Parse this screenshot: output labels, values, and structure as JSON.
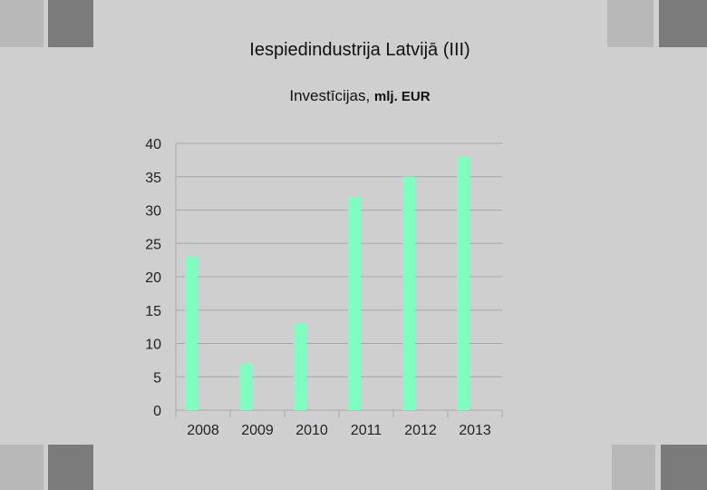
{
  "slide": {
    "title": "Iespiedindustrija Latvijā (III)",
    "subtitle_main": "Investīcijas, ",
    "subtitle_unit": "mlj. EUR"
  },
  "colors": {
    "background": "#cfcfcf",
    "bar": "#7fffbf",
    "grid": "#a8a8a8",
    "square_light": "#b8b8b8",
    "square_dark": "#7b7b7b"
  },
  "chart_data": {
    "type": "bar",
    "title": "Iespiedindustrija Latvijā (III)",
    "subtitle": "Investīcijas, mlj. EUR",
    "categories": [
      "2008",
      "2009",
      "2010",
      "2011",
      "2012",
      "2013"
    ],
    "values": [
      23,
      7,
      13,
      32,
      35,
      38
    ],
    "xlabel": "",
    "ylabel": "",
    "ylim": [
      0,
      40
    ],
    "yticks": [
      0,
      5,
      10,
      15,
      20,
      25,
      30,
      35,
      40
    ],
    "grid": true,
    "legend": "none"
  }
}
